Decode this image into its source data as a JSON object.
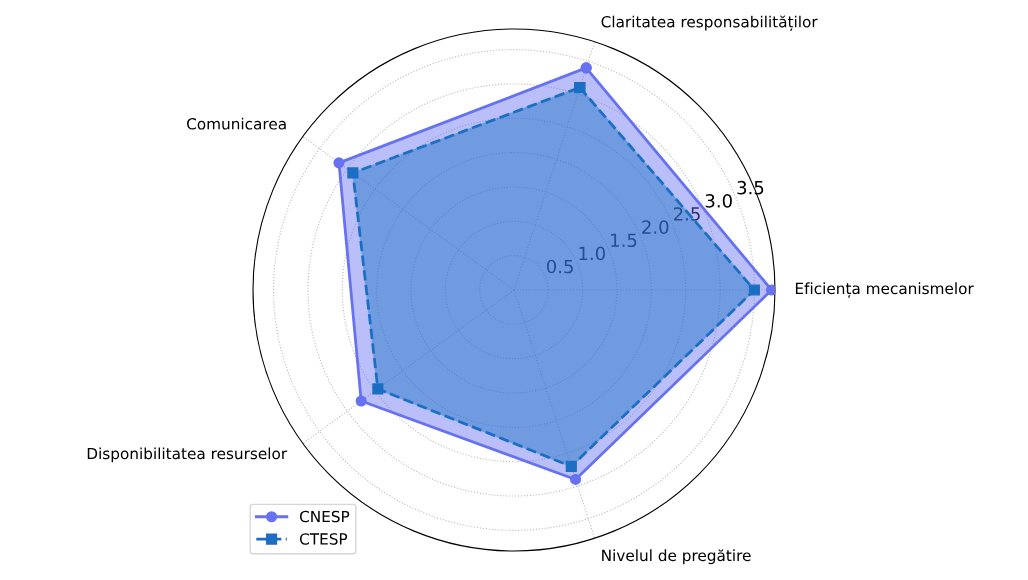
{
  "chart_data": {
    "type": "radar",
    "categories": [
      "Claritatea responsabilităților",
      "Eficiența mecanismelor",
      "Nivelul de pregătire",
      "Disponibilitatea resurselor",
      "Comunicarea"
    ],
    "series": [
      {
        "name": "CNESP",
        "color": "#6672f2",
        "values": [
          3.4,
          3.75,
          2.9,
          2.75,
          3.15
        ],
        "marker": "circle",
        "line_style": "solid"
      },
      {
        "name": "CTESP",
        "color": "#1a6fc4",
        "values": [
          3.1,
          3.5,
          2.7,
          2.45,
          2.9
        ],
        "marker": "square",
        "line_style": "dashed"
      }
    ],
    "ylim": [
      0,
      3.8
    ],
    "yticks": [
      0.5,
      {
        "value": 1,
        "label": "1.0"
      },
      1.5,
      {
        "value": 2,
        "label": "2.0"
      },
      2.5,
      {
        "value": 3,
        "label": "3.0"
      },
      3.5
    ],
    "grid": true,
    "legend": "bottom left"
  }
}
